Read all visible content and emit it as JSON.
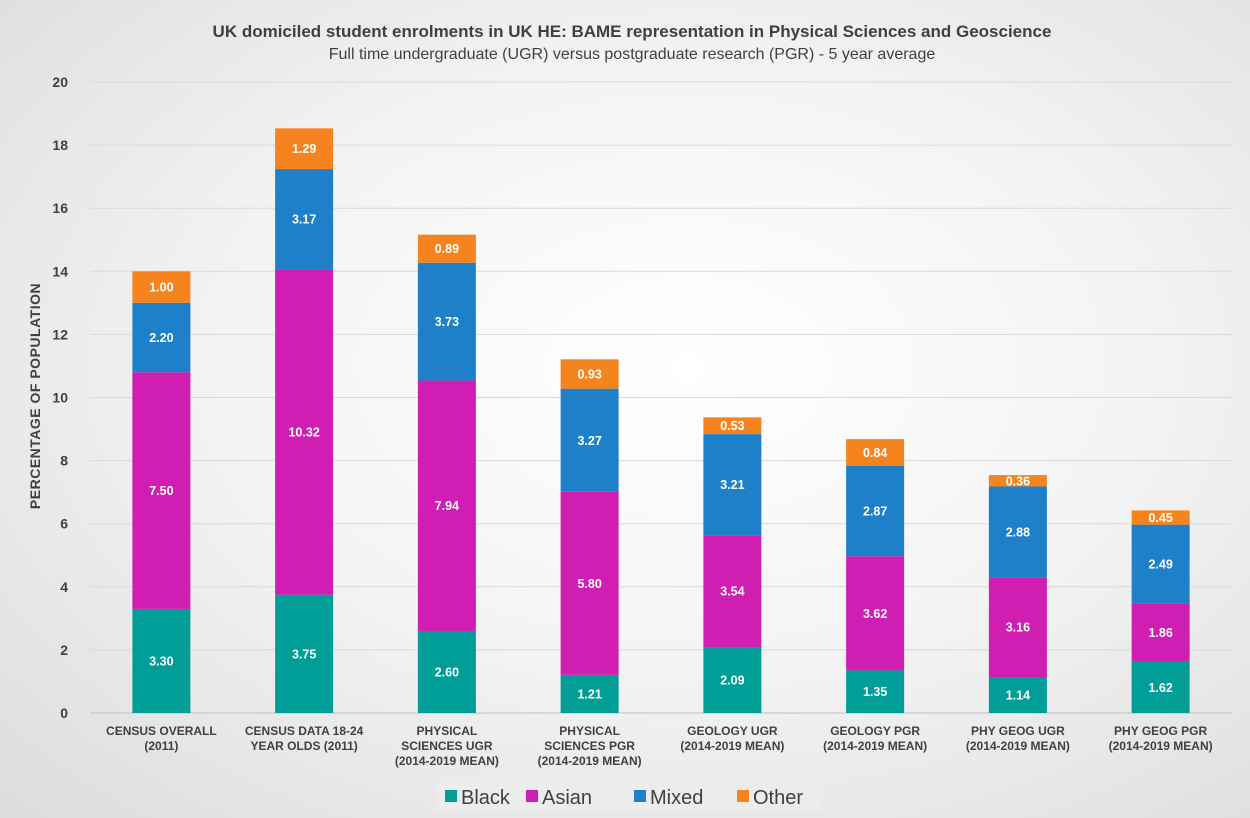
{
  "chart_data": {
    "type": "bar",
    "stacked": true,
    "title": "UK domiciled student enrolments in UK HE: BAME representation in Physical Sciences and Geoscience",
    "subtitle": "Full time undergraduate (UGR) versus postgraduate research (PGR) - 5 year average",
    "ylabel": "PERCENTAGE OF POPULATION",
    "xlabel": "",
    "ylim": [
      0,
      20
    ],
    "yticks": [
      0,
      2,
      4,
      6,
      8,
      10,
      12,
      14,
      16,
      18,
      20
    ],
    "grid": true,
    "legend_position": "bottom",
    "categories": [
      [
        "CENSUS OVERALL",
        "(2011)"
      ],
      [
        "CENSUS DATA 18-24",
        "YEAR OLDS (2011)"
      ],
      [
        "PHYSICAL",
        "SCIENCES UGR",
        "(2014-2019 MEAN)"
      ],
      [
        "PHYSICAL",
        "SCIENCES PGR",
        "(2014-2019 MEAN)"
      ],
      [
        "GEOLOGY UGR",
        "(2014-2019 MEAN)"
      ],
      [
        "GEOLOGY PGR",
        "(2014-2019 MEAN)"
      ],
      [
        "PHY GEOG UGR",
        "(2014-2019 MEAN)"
      ],
      [
        "PHY GEOG PGR",
        "(2014-2019 MEAN)"
      ]
    ],
    "series": [
      {
        "name": "Black",
        "color": "#009e96",
        "values": [
          3.3,
          3.75,
          2.6,
          1.21,
          2.09,
          1.35,
          1.14,
          1.62
        ]
      },
      {
        "name": "Asian",
        "color": "#d01eb2",
        "values": [
          7.5,
          10.32,
          7.94,
          5.8,
          3.54,
          3.62,
          3.16,
          1.86
        ]
      },
      {
        "name": "Mixed",
        "color": "#1d80c9",
        "values": [
          2.2,
          3.17,
          3.73,
          3.27,
          3.21,
          2.87,
          2.88,
          2.49
        ]
      },
      {
        "name": "Other",
        "color": "#f5841f",
        "values": [
          1.0,
          1.29,
          0.89,
          0.93,
          0.53,
          0.84,
          0.36,
          0.45
        ]
      }
    ]
  }
}
